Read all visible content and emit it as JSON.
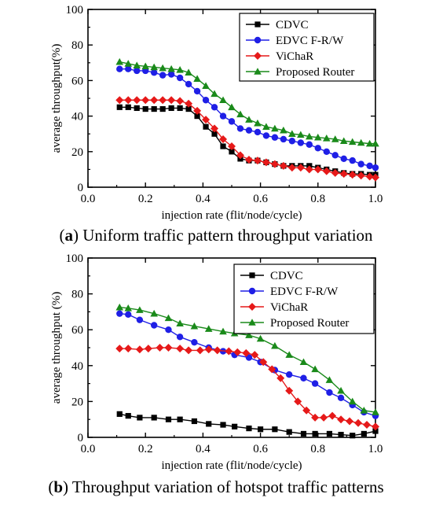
{
  "chart_data": [
    {
      "type": "line",
      "caption_label": "a",
      "caption_text": ") Uniform traffic pattern throughput variation",
      "xlabel": "injection rate (flit/node/cycle)",
      "ylabel": "average throughput(%)",
      "xlim": [
        0.0,
        1.0
      ],
      "ylim": [
        0,
        100
      ],
      "xticks": [
        "0.0",
        "0.2",
        "0.4",
        "0.6",
        "0.8",
        "1.0"
      ],
      "yticks": [
        "0",
        "20",
        "40",
        "60",
        "80",
        "100"
      ],
      "legend_position": "top-right",
      "series": [
        {
          "name": "CDVC",
          "color": "#000000",
          "marker": "square",
          "x": [
            0.11,
            0.14,
            0.17,
            0.2,
            0.23,
            0.26,
            0.29,
            0.32,
            0.35,
            0.38,
            0.41,
            0.44,
            0.47,
            0.5,
            0.53,
            0.56,
            0.59,
            0.62,
            0.65,
            0.68,
            0.71,
            0.74,
            0.77,
            0.8,
            0.83,
            0.86,
            0.89,
            0.92,
            0.95,
            0.98,
            1.0
          ],
          "y": [
            45,
            45,
            44.5,
            44,
            44,
            44,
            44.5,
            44.5,
            44,
            40,
            34,
            30,
            23,
            20,
            16,
            15,
            15,
            14,
            13,
            12,
            12,
            12,
            12,
            11,
            10,
            9,
            8,
            7.5,
            7.5,
            7,
            7
          ]
        },
        {
          "name": "EDVC F-R/W",
          "color": "#1f1fe6",
          "marker": "circle",
          "x": [
            0.11,
            0.14,
            0.17,
            0.2,
            0.23,
            0.26,
            0.29,
            0.32,
            0.35,
            0.38,
            0.41,
            0.44,
            0.47,
            0.5,
            0.53,
            0.56,
            0.59,
            0.62,
            0.65,
            0.68,
            0.71,
            0.74,
            0.77,
            0.8,
            0.83,
            0.86,
            0.89,
            0.92,
            0.95,
            0.98,
            1.0
          ],
          "y": [
            66.5,
            66.5,
            65.5,
            65.5,
            64.5,
            63,
            63.5,
            61.5,
            58,
            54,
            49,
            45,
            40,
            37,
            33,
            32,
            31,
            29,
            28,
            27,
            26,
            25,
            24,
            22,
            20,
            18,
            16,
            15,
            13,
            12,
            11
          ]
        },
        {
          "name": "ViChaR",
          "color": "#e61919",
          "marker": "diamond",
          "x": [
            0.11,
            0.14,
            0.17,
            0.2,
            0.23,
            0.26,
            0.29,
            0.32,
            0.35,
            0.38,
            0.41,
            0.44,
            0.47,
            0.5,
            0.53,
            0.56,
            0.59,
            0.62,
            0.65,
            0.68,
            0.71,
            0.74,
            0.77,
            0.8,
            0.83,
            0.86,
            0.89,
            0.92,
            0.95,
            0.98,
            1.0
          ],
          "y": [
            49,
            49,
            49,
            49,
            49,
            49,
            49,
            48.5,
            47,
            43,
            38,
            33,
            27,
            23,
            18,
            15.5,
            15,
            14,
            13,
            12,
            11,
            11,
            10,
            10,
            9,
            8,
            7.5,
            7,
            6.5,
            6,
            5.5
          ]
        },
        {
          "name": "Proposed Router",
          "color": "#1a8a1a",
          "marker": "triangle",
          "x": [
            0.11,
            0.14,
            0.17,
            0.2,
            0.23,
            0.26,
            0.29,
            0.32,
            0.35,
            0.38,
            0.41,
            0.44,
            0.47,
            0.5,
            0.53,
            0.56,
            0.59,
            0.62,
            0.65,
            0.68,
            0.71,
            0.74,
            0.77,
            0.8,
            0.83,
            0.86,
            0.89,
            0.92,
            0.95,
            0.98,
            1.0
          ],
          "y": [
            70.5,
            69.5,
            68.5,
            68,
            67.5,
            67,
            66.5,
            66,
            64.5,
            61,
            57,
            52.5,
            49,
            45,
            41,
            38,
            36,
            34,
            33,
            32,
            30,
            29.5,
            28.5,
            28,
            27.5,
            27,
            26,
            25.5,
            25,
            24.5,
            24.5
          ]
        }
      ]
    },
    {
      "type": "line",
      "caption_label": "b",
      "caption_text": ") Throughput variation of hotspot traffic patterns",
      "xlabel": "injection rate (flit/node/cycle)",
      "ylabel": "average throughput (%)",
      "xlim": [
        0.0,
        1.0
      ],
      "ylim": [
        0,
        100
      ],
      "xticks": [
        "0.0",
        "0.2",
        "0.4",
        "0.6",
        "0.8",
        "1.0"
      ],
      "yticks": [
        "0",
        "20",
        "40",
        "60",
        "80",
        "100"
      ],
      "legend_position": "top-right",
      "series": [
        {
          "name": "CDVC",
          "color": "#000000",
          "marker": "square",
          "x": [
            0.11,
            0.14,
            0.18,
            0.23,
            0.28,
            0.32,
            0.37,
            0.42,
            0.47,
            0.51,
            0.56,
            0.6,
            0.65,
            0.7,
            0.75,
            0.79,
            0.84,
            0.88,
            0.92,
            0.96,
            1.0
          ],
          "y": [
            13,
            12,
            11,
            11,
            10,
            10,
            9,
            7.5,
            7,
            6,
            5,
            4.5,
            4.5,
            3,
            2,
            2,
            2,
            1.5,
            1,
            2,
            3.5
          ]
        },
        {
          "name": "EDVC F-R/W",
          "color": "#1f1fe6",
          "marker": "circle",
          "x": [
            0.11,
            0.14,
            0.18,
            0.23,
            0.28,
            0.32,
            0.37,
            0.42,
            0.47,
            0.51,
            0.56,
            0.6,
            0.65,
            0.7,
            0.75,
            0.79,
            0.84,
            0.88,
            0.92,
            0.96,
            1.0
          ],
          "y": [
            69,
            68.5,
            65.5,
            62.5,
            60,
            56,
            53,
            50,
            48,
            46,
            44.5,
            42,
            37.5,
            35,
            33,
            30,
            25,
            22,
            18,
            14,
            12
          ]
        },
        {
          "name": "ViChaR",
          "color": "#e61919",
          "marker": "diamond",
          "x": [
            0.11,
            0.14,
            0.18,
            0.21,
            0.25,
            0.28,
            0.32,
            0.35,
            0.39,
            0.42,
            0.45,
            0.49,
            0.52,
            0.55,
            0.58,
            0.61,
            0.64,
            0.67,
            0.7,
            0.73,
            0.76,
            0.79,
            0.82,
            0.85,
            0.88,
            0.91,
            0.94,
            0.97,
            1.0
          ],
          "y": [
            49.5,
            49.5,
            49,
            49.5,
            50,
            50,
            49.5,
            48.5,
            48.5,
            49,
            48.5,
            48,
            47.5,
            47,
            46,
            42,
            38,
            33,
            26,
            20,
            15,
            11,
            11,
            12,
            10,
            9,
            8,
            7,
            6
          ]
        },
        {
          "name": "Proposed Router",
          "color": "#1a8a1a",
          "marker": "triangle",
          "x": [
            0.11,
            0.14,
            0.18,
            0.23,
            0.28,
            0.32,
            0.37,
            0.42,
            0.47,
            0.51,
            0.56,
            0.6,
            0.65,
            0.7,
            0.75,
            0.79,
            0.84,
            0.88,
            0.92,
            0.96,
            1.0
          ],
          "y": [
            72.5,
            72,
            71,
            69,
            66.5,
            63.5,
            62,
            60.5,
            59,
            58,
            57,
            55,
            51,
            46,
            42,
            38,
            32,
            26,
            20,
            15,
            14
          ]
        }
      ]
    }
  ]
}
